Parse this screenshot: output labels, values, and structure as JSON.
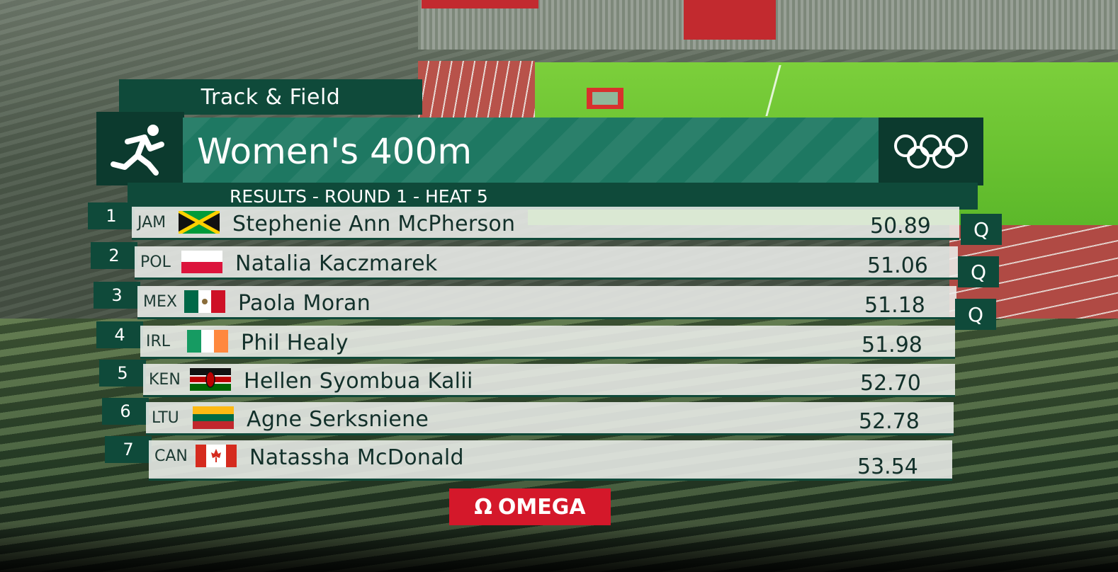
{
  "header": {
    "sport": "Track & Field",
    "event": "Women's 400m",
    "subtitle": "RESULTS - ROUND 1 - HEAT 5"
  },
  "results": [
    {
      "rank": "1",
      "country": "JAM",
      "name": "Stephenie Ann McPherson",
      "time": "50.89",
      "qualifier": "Q"
    },
    {
      "rank": "2",
      "country": "POL",
      "name": "Natalia Kaczmarek",
      "time": "51.06",
      "qualifier": "Q"
    },
    {
      "rank": "3",
      "country": "MEX",
      "name": "Paola Moran",
      "time": "51.18",
      "qualifier": "Q"
    },
    {
      "rank": "4",
      "country": "IRL",
      "name": "Phil Healy",
      "time": "51.98"
    },
    {
      "rank": "5",
      "country": "KEN",
      "name": "Hellen Syombua Kalii",
      "time": "52.70"
    },
    {
      "rank": "6",
      "country": "LTU",
      "name": "Agne Serksniene",
      "time": "52.78"
    },
    {
      "rank": "7",
      "country": "CAN",
      "name": "Natassha McDonald",
      "time": "53.54"
    }
  ],
  "sponsor": {
    "symbol": "Ω",
    "name": "OMEGA"
  },
  "colors": {
    "dark_green": "#0f4a3a",
    "title_green": "#1e7862",
    "omega_red": "#d4182a"
  }
}
